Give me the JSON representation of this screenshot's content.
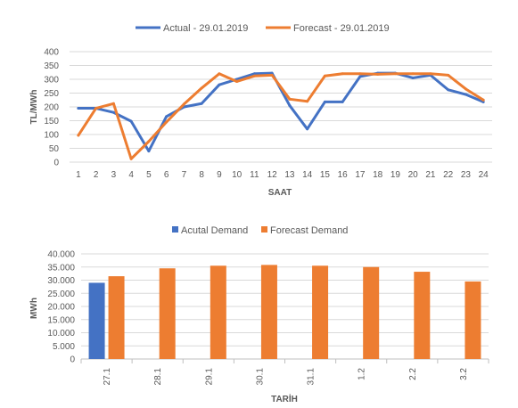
{
  "chart_data": [
    {
      "type": "line",
      "xlabel": "SAAT",
      "ylabel": "TL/MWh",
      "ylim": [
        0,
        400
      ],
      "yticks": [
        0,
        50,
        100,
        150,
        200,
        250,
        300,
        350,
        400
      ],
      "grid": true,
      "legend_position": "top",
      "categories": [
        "1",
        "2",
        "3",
        "4",
        "5",
        "6",
        "7",
        "8",
        "9",
        "10",
        "11",
        "12",
        "13",
        "14",
        "15",
        "16",
        "17",
        "18",
        "19",
        "20",
        "21",
        "22",
        "23",
        "24"
      ],
      "series": [
        {
          "name": "Actual - 29.01.2019",
          "color": "#4472c4",
          "values": [
            195,
            195,
            180,
            148,
            40,
            165,
            200,
            212,
            280,
            300,
            320,
            322,
            205,
            120,
            218,
            218,
            310,
            322,
            322,
            305,
            315,
            262,
            245,
            218
          ]
        },
        {
          "name": "Forecast - 29.01.2019",
          "color": "#ed7d31",
          "values": [
            97,
            195,
            212,
            12,
            75,
            145,
            210,
            268,
            320,
            292,
            312,
            315,
            228,
            220,
            312,
            320,
            320,
            318,
            320,
            320,
            320,
            315,
            265,
            225
          ]
        }
      ]
    },
    {
      "type": "bar",
      "xlabel": "TARİH",
      "ylabel": "MWh",
      "ylim": [
        0,
        40000
      ],
      "yticks": [
        "0",
        "5.000",
        "10.000",
        "15.000",
        "20.000",
        "25.000",
        "30.000",
        "35.000",
        "40.000"
      ],
      "grid": true,
      "legend_position": "top",
      "categories": [
        "27.1",
        "28.1",
        "29.1",
        "30.1",
        "31.1",
        "1.2",
        "2.2",
        "3.2"
      ],
      "series": [
        {
          "name": "Acutal Demand",
          "color": "#4472c4",
          "values": [
            29000,
            null,
            null,
            null,
            null,
            null,
            null,
            null
          ]
        },
        {
          "name": "Forecast Demand",
          "color": "#ed7d31",
          "values": [
            31500,
            34500,
            35500,
            35800,
            35500,
            35000,
            33200,
            29500
          ]
        }
      ]
    }
  ]
}
